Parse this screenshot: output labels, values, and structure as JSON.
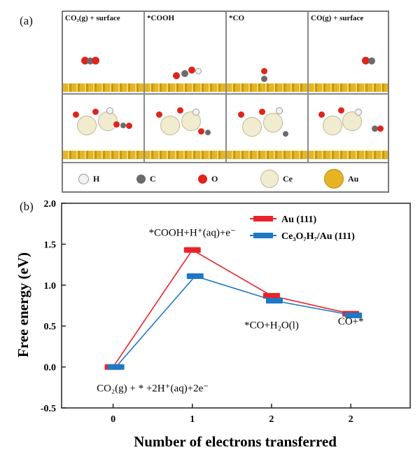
{
  "panel_a": {
    "label": "(a)",
    "columns": [
      {
        "title": "CO₂(g) + surface"
      },
      {
        "title": "*COOH"
      },
      {
        "title": "*CO"
      },
      {
        "title": "CO(g) + surface"
      }
    ],
    "legend": [
      {
        "symbol": "H",
        "color": "#f2f2f2"
      },
      {
        "symbol": "C",
        "color": "#6b6b6b"
      },
      {
        "symbol": "O",
        "color": "#e0241b"
      },
      {
        "symbol": "Ce",
        "color": "#f1ecd0"
      },
      {
        "symbol": "Au",
        "color": "#e6b325"
      }
    ]
  },
  "panel_b": {
    "label": "(b)"
  },
  "chart_data": {
    "type": "line",
    "xlabel": "Number of electrons transferred",
    "ylabel": "Free energy (eV)",
    "categories": [
      "0",
      "1",
      "2",
      "2"
    ],
    "x": [
      0,
      1,
      2,
      3
    ],
    "ylim": [
      -0.5,
      2.0
    ],
    "yticks": [
      "-0.5",
      "0.0",
      "0.5",
      "1.0",
      "1.5",
      "2.0"
    ],
    "legend_position": "top-right",
    "series": [
      {
        "name": "Au (111)",
        "color": "#e8242a",
        "values": [
          0.0,
          1.43,
          0.87,
          0.65
        ]
      },
      {
        "name": "Ce₃O₇H₇/Au (111)",
        "color": "#1d78c6",
        "values": [
          0.0,
          1.11,
          0.81,
          0.63
        ]
      }
    ],
    "annotations": [
      {
        "text": "*COOH+H⁺(aq)+e⁻",
        "x": 1,
        "y": 1.6
      },
      {
        "text": "*CO+H₂O(l)",
        "x": 2,
        "y": 0.47
      },
      {
        "text": "CO+*",
        "x": 3,
        "y": 0.52
      },
      {
        "text": "CO₂(g) + * +2H⁺(aq)+2e⁻",
        "x": 0.5,
        "y": -0.3
      }
    ]
  }
}
